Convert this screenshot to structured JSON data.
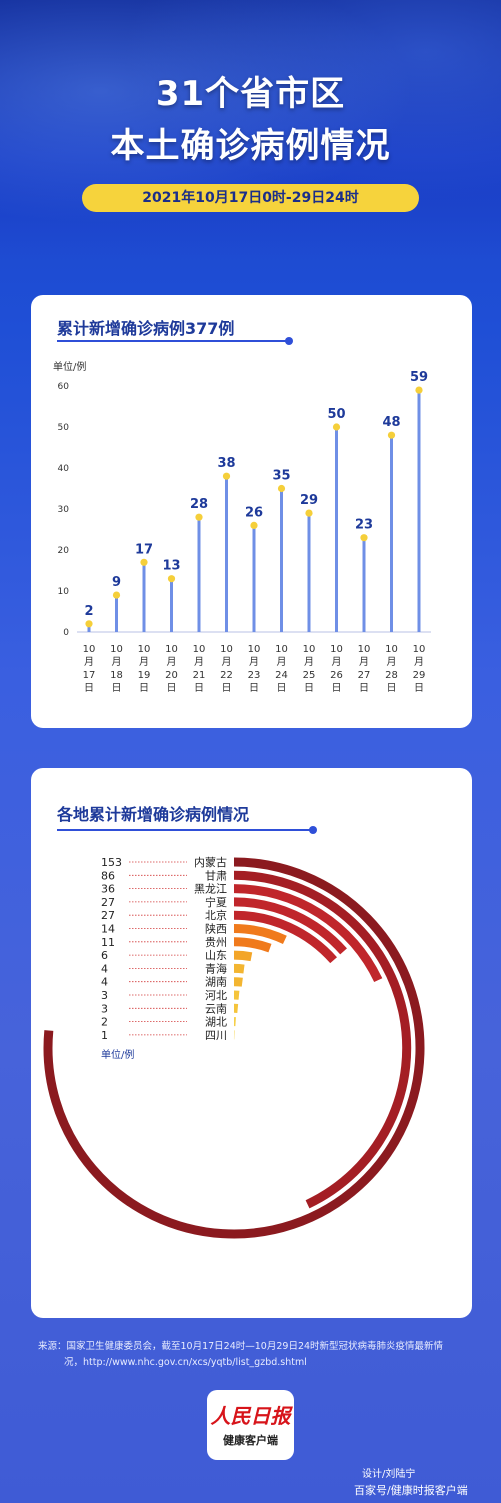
{
  "header": {
    "title_line1": "31个省市区",
    "title_line2": "本土确诊病例情况",
    "date_range": "2021年10月17日0时-29日24时"
  },
  "colors": {
    "background": "#1f4fd6",
    "accent_yellow": "#f6d33c",
    "bar": "#6f8fe6",
    "dot": "#f5cf3a",
    "label_blue": "#1e3a9a"
  },
  "chart_data": [
    {
      "type": "bar",
      "title": "累计新增确诊病例377例",
      "ylabel": "单位/例",
      "ylim": [
        0,
        60
      ],
      "yticks": [
        "0",
        "10",
        "20",
        "30",
        "40",
        "50",
        "60"
      ],
      "categories": [
        "10月17日",
        "10月18日",
        "10月19日",
        "10月20日",
        "10月21日",
        "10月22日",
        "10月23日",
        "10月24日",
        "10月25日",
        "10月26日",
        "10月27日",
        "10月28日",
        "10月29日"
      ],
      "values": [
        2,
        9,
        17,
        13,
        28,
        38,
        26,
        35,
        29,
        50,
        23,
        48,
        59
      ]
    },
    {
      "type": "bar",
      "title": "各地累计新增确诊病例情况",
      "ylabel": "单位/例",
      "categories": [
        "内蒙古",
        "甘肃",
        "黑龙江",
        "宁夏",
        "北京",
        "陕西",
        "贵州",
        "山东",
        "青海",
        "湖南",
        "河北",
        "云南",
        "湖北",
        "四川"
      ],
      "values": [
        153,
        86,
        36,
        27,
        27,
        14,
        11,
        6,
        4,
        4,
        3,
        3,
        2,
        1
      ],
      "colors": [
        "#8b1a1f",
        "#a41e24",
        "#c0262b",
        "#c0262b",
        "#c0262b",
        "#f07a1c",
        "#f07a1c",
        "#f3a528",
        "#f3b531",
        "#f3b531",
        "#f5c43b",
        "#f5c43b",
        "#f6cf48",
        "#f6d552"
      ]
    }
  ],
  "source": {
    "line1": "来源：国家卫生健康委员会，截至10月17日24时—10月29日24时新型冠状病毒肺炎疫情最新情",
    "line2": "况，http://www.nhc.gov.cn/xcs/yqtb/list_gzbd.shtml"
  },
  "logo": {
    "main": "人民日报",
    "sub": "健康客户端"
  },
  "designer": "设计/刘陆宁",
  "footer_tag": "百家号/健康时报客户端"
}
